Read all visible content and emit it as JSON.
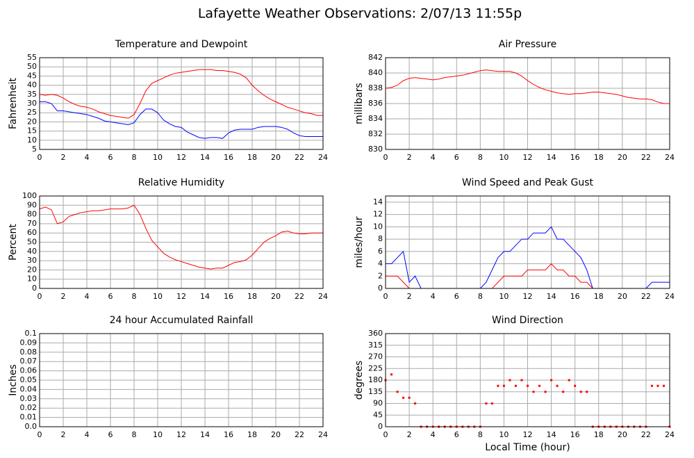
{
  "title": "Lafayette Weather Observations: 2/07/13 11:55p",
  "chart_data": [
    {
      "type": "line",
      "title": "Temperature and Dewpoint",
      "ylabel": "Fahrenheit",
      "x": [
        0,
        0.5,
        1,
        1.5,
        2,
        2.5,
        3,
        3.5,
        4,
        4.5,
        5,
        5.5,
        6,
        6.5,
        7,
        7.5,
        8,
        8.5,
        9,
        9.5,
        10,
        10.5,
        11,
        11.5,
        12,
        12.5,
        13,
        13.5,
        14,
        14.5,
        15,
        15.5,
        16,
        16.5,
        17,
        17.5,
        18,
        18.5,
        19,
        19.5,
        20,
        20.5,
        21,
        21.5,
        22,
        22.5,
        23,
        23.5,
        24
      ],
      "series": [
        {
          "color": "#ff0000",
          "values": [
            35,
            34.5,
            35,
            34.5,
            33,
            31,
            29.5,
            28.5,
            28,
            27,
            25.5,
            24.5,
            23.5,
            23,
            22.5,
            22,
            24,
            30,
            37,
            41,
            42.5,
            44,
            45.5,
            46.5,
            47,
            47.5,
            48,
            48.5,
            48.5,
            48.5,
            48,
            48,
            47.5,
            47,
            46,
            44,
            40,
            37,
            34.5,
            32.5,
            31,
            29.5,
            28,
            27,
            26,
            25,
            24.5,
            23.5,
            23.5
          ]
        },
        {
          "color": "#0000ff",
          "values": [
            31,
            31,
            30,
            26,
            26,
            25.5,
            25,
            24.5,
            24,
            23,
            22,
            20.5,
            20,
            19.5,
            19,
            18.5,
            19.5,
            24,
            27,
            27,
            25,
            21,
            19,
            17.5,
            17,
            14.5,
            13,
            11.5,
            11,
            11.5,
            11.5,
            11,
            14,
            15.5,
            16,
            16,
            16,
            17,
            17.5,
            17.5,
            17.5,
            17,
            16,
            14,
            12.5,
            12,
            12,
            12,
            12
          ]
        }
      ],
      "xlim": [
        0,
        24
      ],
      "xticks": [
        0,
        2,
        4,
        6,
        8,
        10,
        12,
        14,
        16,
        18,
        20,
        22,
        24
      ],
      "ylim": [
        5,
        55
      ],
      "yticks": [
        5,
        10,
        15,
        20,
        25,
        30,
        35,
        40,
        45,
        50,
        55
      ],
      "grid": true
    },
    {
      "type": "line",
      "title": "Air Pressure",
      "ylabel": "millibars",
      "x": [
        0,
        0.5,
        1,
        1.5,
        2,
        2.5,
        3,
        3.5,
        4,
        4.5,
        5,
        5.5,
        6,
        6.5,
        7,
        7.5,
        8,
        8.5,
        9,
        9.5,
        10,
        10.5,
        11,
        11.5,
        12,
        12.5,
        13,
        13.5,
        14,
        14.5,
        15,
        15.5,
        16,
        16.5,
        17,
        17.5,
        18,
        18.5,
        19,
        19.5,
        20,
        20.5,
        21,
        21.5,
        22,
        22.5,
        23,
        23.5,
        24
      ],
      "series": [
        {
          "color": "#ff0000",
          "values": [
            838,
            838.1,
            838.4,
            839,
            839.3,
            839.4,
            839.3,
            839.2,
            839.1,
            839.2,
            839.4,
            839.5,
            839.6,
            839.7,
            839.9,
            840.1,
            840.3,
            840.4,
            840.3,
            840.2,
            840.2,
            840.2,
            840,
            839.6,
            839,
            838.5,
            838.1,
            837.8,
            837.6,
            837.4,
            837.3,
            837.2,
            837.3,
            837.3,
            837.4,
            837.5,
            837.5,
            837.4,
            837.3,
            837.2,
            837,
            836.8,
            836.7,
            836.6,
            836.6,
            836.5,
            836.2,
            836,
            836
          ]
        }
      ],
      "xlim": [
        0,
        24
      ],
      "xticks": [
        0,
        2,
        4,
        6,
        8,
        10,
        12,
        14,
        16,
        18,
        20,
        22,
        24
      ],
      "ylim": [
        830,
        842
      ],
      "yticks": [
        830,
        832,
        834,
        836,
        838,
        840,
        842
      ],
      "grid": true
    },
    {
      "type": "line",
      "title": "Relative Humidity",
      "ylabel": "Percent",
      "x": [
        0,
        0.5,
        1,
        1.5,
        2,
        2.5,
        3,
        3.5,
        4,
        4.5,
        5,
        5.5,
        6,
        6.5,
        7,
        7.5,
        8,
        8.5,
        9,
        9.5,
        10,
        10.5,
        11,
        11.5,
        12,
        12.5,
        13,
        13.5,
        14,
        14.5,
        15,
        15.5,
        16,
        16.5,
        17,
        17.5,
        18,
        18.5,
        19,
        19.5,
        20,
        20.5,
        21,
        21.5,
        22,
        22.5,
        23,
        23.5,
        24
      ],
      "series": [
        {
          "color": "#ff0000",
          "values": [
            86,
            88,
            85,
            70,
            72,
            78,
            80,
            82,
            83,
            84,
            84,
            85,
            86,
            86,
            86,
            87,
            90,
            80,
            65,
            52,
            45,
            38,
            34,
            31,
            29,
            27,
            25,
            23,
            22,
            21,
            22,
            22,
            25,
            28,
            29,
            31,
            36,
            43,
            50,
            54,
            57,
            61,
            62,
            60,
            59,
            59,
            60,
            60,
            60
          ]
        }
      ],
      "xlim": [
        0,
        24
      ],
      "xticks": [
        0,
        2,
        4,
        6,
        8,
        10,
        12,
        14,
        16,
        18,
        20,
        22,
        24
      ],
      "ylim": [
        0,
        100
      ],
      "yticks": [
        0,
        10,
        20,
        30,
        40,
        50,
        60,
        70,
        80,
        90,
        100
      ],
      "grid": true
    },
    {
      "type": "line",
      "title": "Wind Speed and Peak Gust",
      "ylabel": "miles/hour",
      "x": [
        0,
        0.5,
        1,
        1.5,
        2,
        2.5,
        3,
        3.5,
        4,
        4.5,
        5,
        5.5,
        6,
        6.5,
        7,
        7.5,
        8,
        8.5,
        9,
        9.5,
        10,
        10.5,
        11,
        11.5,
        12,
        12.5,
        13,
        13.5,
        14,
        14.5,
        15,
        15.5,
        16,
        16.5,
        17,
        17.5,
        18,
        18.5,
        19,
        19.5,
        20,
        20.5,
        21,
        21.5,
        22,
        22.5,
        23,
        23.5,
        24
      ],
      "series": [
        {
          "color": "#0000ff",
          "values": [
            4,
            4,
            5,
            6,
            1,
            2,
            0,
            0,
            0,
            0,
            0,
            0,
            0,
            0,
            0,
            0,
            0,
            1,
            3,
            5,
            6,
            6,
            7,
            8,
            8,
            9,
            9,
            9,
            10,
            8,
            8,
            7,
            6,
            5,
            3,
            0,
            0,
            0,
            0,
            0,
            0,
            0,
            0,
            0,
            0,
            1,
            1,
            1,
            1
          ]
        },
        {
          "color": "#ff0000",
          "values": [
            2,
            2,
            2,
            1,
            0,
            0,
            0,
            0,
            0,
            0,
            0,
            0,
            0,
            0,
            0,
            0,
            0,
            0,
            0,
            1,
            2,
            2,
            2,
            2,
            3,
            3,
            3,
            3,
            4,
            3,
            3,
            2,
            2,
            1,
            1,
            0,
            0,
            0,
            0,
            0,
            0,
            0,
            0,
            0,
            0,
            0,
            0,
            0,
            0
          ]
        }
      ],
      "xlim": [
        0,
        24
      ],
      "xticks": [
        0,
        2,
        4,
        6,
        8,
        10,
        12,
        14,
        16,
        18,
        20,
        22,
        24
      ],
      "ylim": [
        0,
        15
      ],
      "yticks": [
        0,
        2,
        4,
        6,
        8,
        10,
        12,
        14
      ],
      "grid": true
    },
    {
      "type": "line",
      "title": "24 hour Accumulated Rainfall",
      "ylabel": "Inches",
      "x": [
        0,
        24
      ],
      "series": [
        {
          "color": "#ff0000",
          "values": [
            0,
            0
          ]
        }
      ],
      "xlim": [
        0,
        24
      ],
      "xticks": [
        0,
        2,
        4,
        6,
        8,
        10,
        12,
        14,
        16,
        18,
        20,
        22,
        24
      ],
      "ylim": [
        0,
        0.1
      ],
      "yticks": [
        {
          "value": 0,
          "label": "0.0"
        },
        0.01,
        0.02,
        0.03,
        0.04,
        0.05,
        0.06,
        0.07,
        0.08,
        0.09,
        0.1
      ],
      "grid": true
    },
    {
      "type": "scatter",
      "title": "Wind Direction",
      "ylabel": "degrees",
      "xlabel": "Local Time (hour)",
      "x": [
        0,
        0.5,
        1,
        1.5,
        2,
        2.5,
        3,
        3.5,
        4,
        4.5,
        5,
        5.5,
        6,
        6.5,
        7,
        7.5,
        8,
        8.5,
        9,
        9.5,
        10,
        10.5,
        11,
        11.5,
        12,
        12.5,
        13,
        13.5,
        14,
        14.5,
        15,
        15.5,
        16,
        16.5,
        17,
        17.5,
        18,
        18.5,
        19,
        19.5,
        20,
        20.5,
        21,
        21.5,
        22,
        22.5,
        23,
        23.5,
        24
      ],
      "series": [
        {
          "color": "#ff0000",
          "values": [
            180,
            202,
            135,
            112,
            112,
            90,
            0,
            0,
            0,
            0,
            0,
            0,
            0,
            0,
            0,
            0,
            0,
            90,
            90,
            158,
            158,
            180,
            158,
            180,
            158,
            135,
            158,
            135,
            180,
            158,
            135,
            180,
            158,
            135,
            135,
            0,
            0,
            0,
            0,
            0,
            0,
            0,
            0,
            0,
            0,
            158,
            158,
            158,
            0
          ]
        }
      ],
      "xlim": [
        0,
        24
      ],
      "xticks": [
        0,
        2,
        4,
        6,
        8,
        10,
        12,
        14,
        16,
        18,
        20,
        22,
        24
      ],
      "ylim": [
        0,
        360
      ],
      "yticks": [
        0,
        45,
        90,
        135,
        180,
        225,
        270,
        315,
        360
      ],
      "grid": true
    }
  ]
}
